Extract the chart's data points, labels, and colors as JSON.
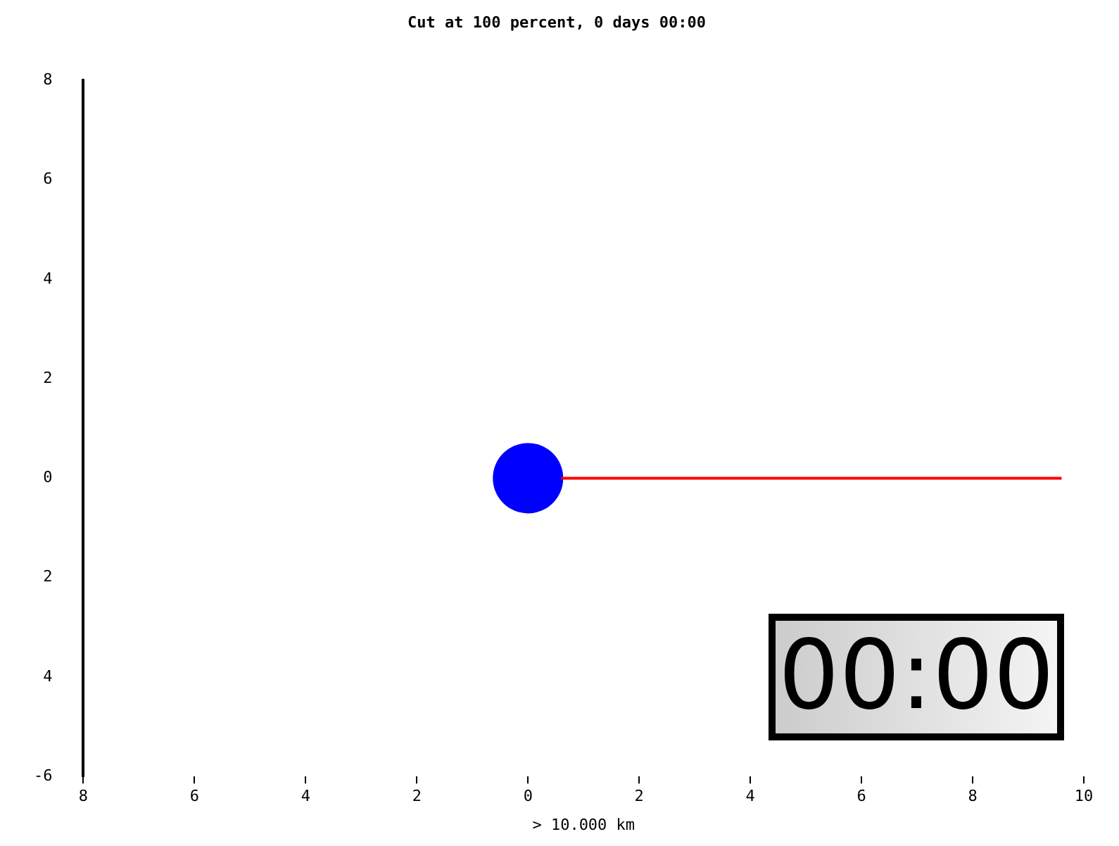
{
  "chart_data": {
    "type": "scatter",
    "title": "Cut at 100 percent, 0 days 00:00",
    "xlabel": "> 10.000 km",
    "xlim": [
      -8,
      10
    ],
    "xticks": [
      {
        "value": -8,
        "label": "8"
      },
      {
        "value": -6,
        "label": "6"
      },
      {
        "value": -4,
        "label": "4"
      },
      {
        "value": -2,
        "label": "2"
      },
      0,
      2,
      4,
      6,
      8,
      10
    ],
    "ylim": [
      -6,
      8
    ],
    "yticks": [
      {
        "value": -6,
        "label": "-6"
      },
      {
        "value": -4,
        "label": "4"
      },
      {
        "value": -2,
        "label": "2"
      },
      0,
      2,
      4,
      6,
      8
    ],
    "grid": false,
    "marker": "circle",
    "series": [
      {
        "type": "line",
        "color": "#ff0000",
        "x": [
          0.6,
          9.6
        ],
        "values": [
          0,
          0
        ],
        "marker": "none",
        "line_style": "solid"
      },
      {
        "type": "scatter",
        "color": "#0000ff",
        "x": [
          0
        ],
        "values": [
          0
        ]
      }
    ],
    "annotations": [
      "00:00"
    ]
  }
}
